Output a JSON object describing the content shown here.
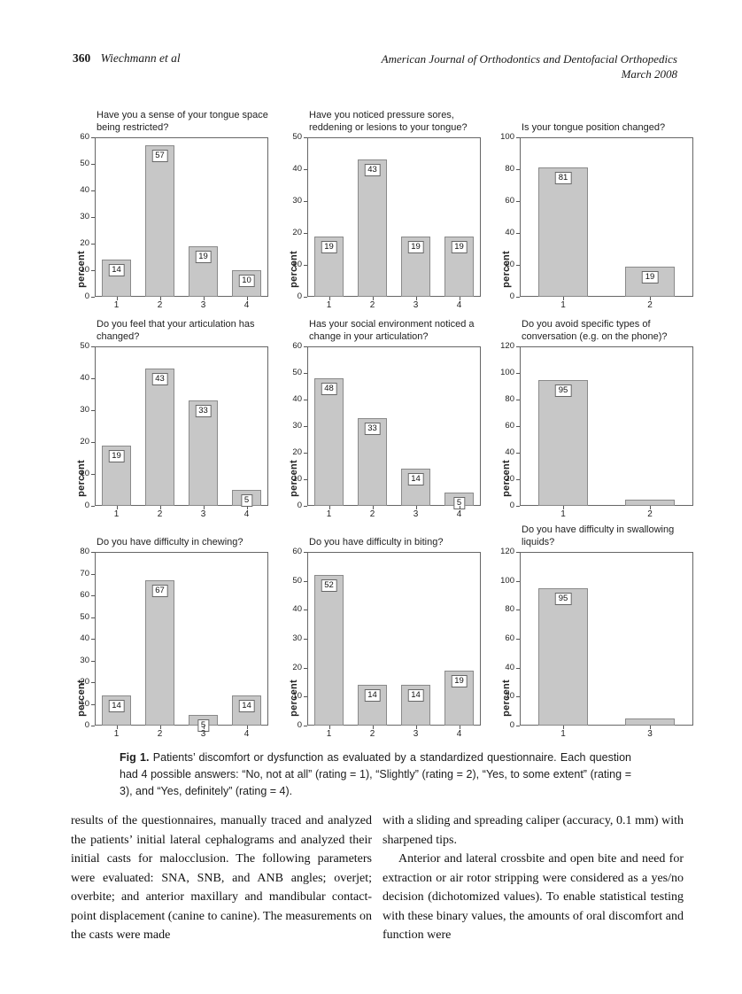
{
  "header": {
    "page_number": "360",
    "authors": "Wiechmann et al",
    "journal": "American Journal of Orthodontics and Dentofacial Orthopedics",
    "issue": "March 2008"
  },
  "figure": {
    "caption_label": "Fig 1.",
    "caption_text": "Patients’ discomfort or dysfunction as evaluated by a standardized questionnaire. Each question had 4 possible answers: “No, not at all” (rating = 1), “Slightly” (rating = 2), “Yes, to some extent” (rating = 3), and “Yes, definitely” (rating = 4)."
  },
  "chart_data": [
    {
      "type": "bar",
      "title": "Have you a sense of your tongue space being restricted?",
      "ylabel": "percent",
      "xlabel": "",
      "categories": [
        "1",
        "2",
        "3",
        "4"
      ],
      "values": [
        14,
        57,
        19,
        10
      ],
      "bar_labels": [
        14,
        57,
        19,
        10
      ],
      "ylim": [
        0,
        60
      ],
      "ytick_step": 10,
      "grid": false,
      "legend": "none"
    },
    {
      "type": "bar",
      "title": "Have you noticed pressure sores, reddening or lesions to your tongue?",
      "ylabel": "percent",
      "xlabel": "",
      "categories": [
        "1",
        "2",
        "3",
        "4"
      ],
      "values": [
        19,
        43,
        19,
        19
      ],
      "bar_labels": [
        19,
        43,
        19,
        19
      ],
      "ylim": [
        0,
        50
      ],
      "ytick_step": 10,
      "grid": false,
      "legend": "none"
    },
    {
      "type": "bar",
      "title": "Is your tongue position changed?",
      "ylabel": "percent",
      "xlabel": "",
      "categories": [
        "1",
        "2"
      ],
      "values": [
        81,
        19
      ],
      "bar_labels": [
        81,
        19
      ],
      "ylim": [
        0,
        100
      ],
      "ytick_step": 20,
      "grid": false,
      "legend": "none"
    },
    {
      "type": "bar",
      "title": "Do you feel that your articulation has changed?",
      "ylabel": "percent",
      "xlabel": "",
      "categories": [
        "1",
        "2",
        "3",
        "4"
      ],
      "values": [
        19,
        43,
        33,
        5
      ],
      "bar_labels": [
        19,
        43,
        33,
        5
      ],
      "ylim": [
        0,
        50
      ],
      "ytick_step": 10,
      "grid": false,
      "legend": "none"
    },
    {
      "type": "bar",
      "title": "Has your social environment noticed a change in your articulation?",
      "ylabel": "percent",
      "xlabel": "",
      "categories": [
        "1",
        "2",
        "3",
        "4"
      ],
      "values": [
        48,
        33,
        14,
        5
      ],
      "bar_labels": [
        48,
        33,
        14,
        5
      ],
      "ylim": [
        0,
        60
      ],
      "ytick_step": 10,
      "grid": false,
      "legend": "none"
    },
    {
      "type": "bar",
      "title": "Do you avoid specific types of conversation (e.g. on the phone)?",
      "ylabel": "percent",
      "xlabel": "",
      "categories": [
        "1",
        "2"
      ],
      "values": [
        95,
        5
      ],
      "bar_labels": [
        95,
        null
      ],
      "ylim": [
        0,
        120
      ],
      "ytick_step": 20,
      "grid": false,
      "legend": "none"
    },
    {
      "type": "bar",
      "title": "Do you have difficulty in chewing?",
      "ylabel": "percent",
      "xlabel": "",
      "categories": [
        "1",
        "2",
        "3",
        "4"
      ],
      "values": [
        14,
        67,
        5,
        14
      ],
      "bar_labels": [
        14,
        67,
        5,
        14
      ],
      "ylim": [
        0,
        80
      ],
      "ytick_step": 10,
      "grid": false,
      "legend": "none"
    },
    {
      "type": "bar",
      "title": "Do you have difficulty in biting?",
      "ylabel": "percent",
      "xlabel": "",
      "categories": [
        "1",
        "2",
        "3",
        "4"
      ],
      "values": [
        52,
        14,
        14,
        19
      ],
      "bar_labels": [
        52,
        14,
        14,
        19
      ],
      "ylim": [
        0,
        60
      ],
      "ytick_step": 10,
      "grid": false,
      "legend": "none"
    },
    {
      "type": "bar",
      "title": "Do you have difficulty in swallowing liquids?",
      "ylabel": "percent",
      "xlabel": "",
      "categories": [
        "1",
        "3"
      ],
      "values": [
        95,
        5
      ],
      "bar_labels": [
        95,
        null
      ],
      "ylim": [
        0,
        120
      ],
      "ytick_step": 20,
      "grid": false,
      "legend": "none"
    }
  ],
  "body": {
    "left_column": [
      "results of the questionnaires, manually traced and analyzed the patients’ initial lateral cephalograms and analyzed their initial casts for malocclusion. The following parameters were evaluated: SNA, SNB, and ANB angles; overjet; overbite; and anterior maxillary and mandibular contact-point displacement (canine to canine). The measurements on the casts were made"
    ],
    "right_column": [
      "with a sliding and spreading caliper (accuracy, 0.1 mm) with sharpened tips.",
      "Anterior and lateral crossbite and open bite and need for extraction or air rotor stripping were considered as a yes/no decision (dichotomized values). To enable statistical testing with these binary values, the amounts of oral discomfort and function were"
    ]
  },
  "colors": {
    "bar_fill": "#c7c7c7",
    "bar_border": "#8a8a8a",
    "plot_border": "#666666",
    "text": "#1a1a1a",
    "page_bg": "#ffffff"
  }
}
